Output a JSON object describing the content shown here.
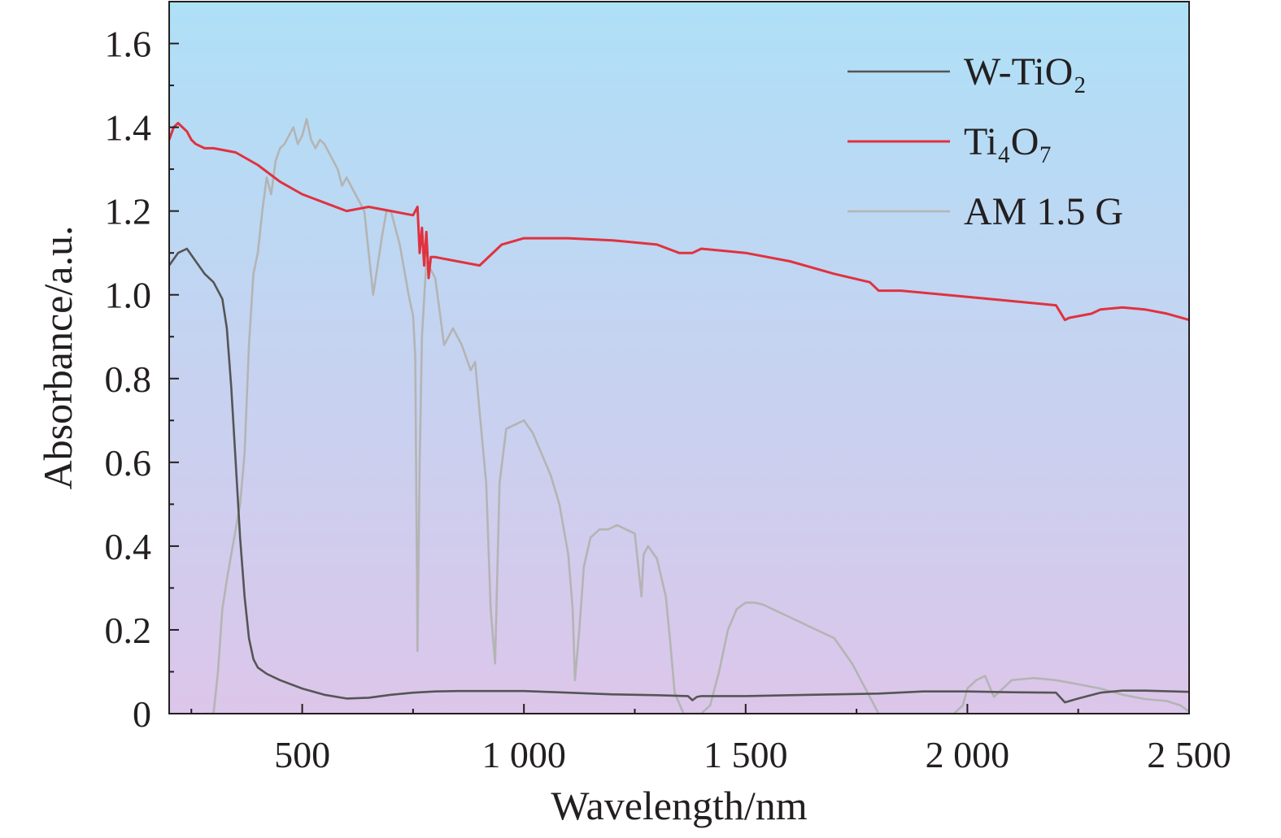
{
  "chart_data": {
    "type": "line",
    "xlabel": "Wavelength/nm",
    "ylabel": "Absorbance/a.u.",
    "xlim": [
      200,
      2500
    ],
    "ylim": [
      0,
      1.7
    ],
    "x_ticks": [
      500,
      1000,
      1500,
      2000,
      2500
    ],
    "x_tick_labels": [
      "500",
      "1 000",
      "1 500",
      "2 000",
      "2 500"
    ],
    "y_ticks": [
      0,
      0.2,
      0.4,
      0.6,
      0.8,
      1.0,
      1.2,
      1.4,
      1.6
    ],
    "y_tick_labels": [
      "0",
      "0.2",
      "0.4",
      "0.6",
      "0.8",
      "1.0",
      "1.2",
      "1.4",
      "1.6"
    ],
    "grid": false,
    "legend_position": "top-right",
    "background_gradient": {
      "top": "#aee0f7",
      "bottom": "#dcc6ea"
    },
    "series": [
      {
        "name": "W-TiO₂",
        "color": "#555555",
        "x": [
          200,
          220,
          240,
          260,
          280,
          300,
          320,
          330,
          340,
          350,
          360,
          370,
          380,
          390,
          400,
          420,
          450,
          500,
          550,
          600,
          650,
          700,
          750,
          800,
          850,
          900,
          1000,
          1100,
          1200,
          1300,
          1370,
          1380,
          1390,
          1400,
          1500,
          1600,
          1700,
          1800,
          1900,
          2000,
          2100,
          2200,
          2220,
          2250,
          2300,
          2350,
          2400,
          2500
        ],
        "y": [
          1.07,
          1.1,
          1.11,
          1.08,
          1.05,
          1.03,
          0.99,
          0.92,
          0.78,
          0.6,
          0.42,
          0.28,
          0.18,
          0.13,
          0.11,
          0.095,
          0.08,
          0.06,
          0.045,
          0.036,
          0.038,
          0.045,
          0.05,
          0.053,
          0.054,
          0.054,
          0.054,
          0.05,
          0.046,
          0.044,
          0.042,
          0.032,
          0.04,
          0.042,
          0.042,
          0.044,
          0.046,
          0.048,
          0.053,
          0.053,
          0.051,
          0.05,
          0.027,
          0.036,
          0.05,
          0.055,
          0.055,
          0.052
        ]
      },
      {
        "name": "Ti₄O₇",
        "color": "#e0323f",
        "x": [
          200,
          210,
          220,
          230,
          240,
          250,
          260,
          280,
          300,
          350,
          400,
          450,
          500,
          550,
          600,
          650,
          700,
          750,
          760,
          765,
          770,
          775,
          780,
          785,
          790,
          800,
          850,
          900,
          950,
          1000,
          1100,
          1200,
          1300,
          1350,
          1380,
          1400,
          1500,
          1600,
          1700,
          1780,
          1800,
          1850,
          1900,
          2000,
          2100,
          2200,
          2220,
          2230,
          2280,
          2300,
          2350,
          2400,
          2450,
          2500
        ],
        "y": [
          1.37,
          1.4,
          1.41,
          1.4,
          1.39,
          1.37,
          1.36,
          1.35,
          1.35,
          1.34,
          1.31,
          1.27,
          1.24,
          1.22,
          1.2,
          1.21,
          1.2,
          1.19,
          1.21,
          1.1,
          1.16,
          1.07,
          1.15,
          1.04,
          1.09,
          1.09,
          1.08,
          1.07,
          1.12,
          1.135,
          1.135,
          1.13,
          1.12,
          1.1,
          1.1,
          1.11,
          1.1,
          1.08,
          1.05,
          1.03,
          1.01,
          1.01,
          1.005,
          0.995,
          0.985,
          0.975,
          0.94,
          0.945,
          0.955,
          0.965,
          0.97,
          0.965,
          0.955,
          0.94
        ]
      },
      {
        "name": "AM 1.5 G",
        "color": "#b4b4b4",
        "x": [
          280,
          290,
          300,
          310,
          320,
          330,
          340,
          350,
          360,
          370,
          380,
          390,
          400,
          410,
          420,
          430,
          440,
          450,
          460,
          470,
          480,
          490,
          500,
          510,
          520,
          530,
          540,
          550,
          560,
          570,
          580,
          590,
          600,
          620,
          640,
          660,
          680,
          690,
          700,
          720,
          740,
          750,
          755,
          760,
          765,
          770,
          780,
          800,
          810,
          820,
          830,
          840,
          860,
          880,
          890,
          900,
          915,
          925,
          935,
          945,
          960,
          980,
          1000,
          1020,
          1040,
          1060,
          1080,
          1100,
          1110,
          1115,
          1125,
          1135,
          1150,
          1170,
          1190,
          1210,
          1230,
          1250,
          1265,
          1270,
          1280,
          1300,
          1320,
          1330,
          1340,
          1360,
          1380,
          1400,
          1420,
          1440,
          1460,
          1480,
          1500,
          1520,
          1540,
          1560,
          1580,
          1600,
          1620,
          1640,
          1660,
          1680,
          1700,
          1720,
          1740,
          1760,
          1780,
          1800,
          1820,
          1860,
          1900,
          1940,
          1970,
          1990,
          2000,
          2020,
          2040,
          2060,
          2080,
          2100,
          2150,
          2200,
          2250,
          2300,
          2350,
          2400,
          2450,
          2480,
          2500
        ],
        "y": [
          0.0,
          0.0,
          0.0,
          0.1,
          0.25,
          0.32,
          0.38,
          0.44,
          0.5,
          0.62,
          0.88,
          1.05,
          1.1,
          1.2,
          1.28,
          1.24,
          1.32,
          1.35,
          1.36,
          1.38,
          1.4,
          1.36,
          1.38,
          1.42,
          1.37,
          1.35,
          1.37,
          1.36,
          1.34,
          1.32,
          1.3,
          1.26,
          1.28,
          1.24,
          1.2,
          1.0,
          1.14,
          1.2,
          1.2,
          1.12,
          1.0,
          0.95,
          0.85,
          0.15,
          0.6,
          0.9,
          1.08,
          1.04,
          0.96,
          0.88,
          0.9,
          0.92,
          0.88,
          0.82,
          0.84,
          0.72,
          0.55,
          0.25,
          0.12,
          0.55,
          0.68,
          0.69,
          0.7,
          0.67,
          0.62,
          0.57,
          0.5,
          0.38,
          0.25,
          0.08,
          0.2,
          0.35,
          0.42,
          0.44,
          0.44,
          0.45,
          0.44,
          0.43,
          0.28,
          0.38,
          0.4,
          0.37,
          0.28,
          0.17,
          0.05,
          0.0,
          0.0,
          0.0,
          0.02,
          0.1,
          0.2,
          0.25,
          0.265,
          0.265,
          0.26,
          0.25,
          0.24,
          0.23,
          0.22,
          0.21,
          0.2,
          0.19,
          0.18,
          0.15,
          0.12,
          0.08,
          0.04,
          0.0,
          0.0,
          0.0,
          0.0,
          0.0,
          0.0,
          0.02,
          0.06,
          0.08,
          0.09,
          0.04,
          0.06,
          0.08,
          0.085,
          0.08,
          0.07,
          0.06,
          0.045,
          0.035,
          0.03,
          0.02,
          0.005
        ]
      }
    ]
  }
}
